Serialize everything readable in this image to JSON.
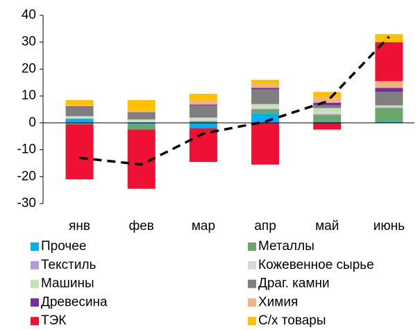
{
  "chart_data": {
    "type": "bar",
    "stacked": true,
    "categories": [
      "янв",
      "фев",
      "мар",
      "апр",
      "май",
      "июнь"
    ],
    "ylim": [
      -30,
      40
    ],
    "yticks": [
      -30,
      -20,
      -10,
      0,
      10,
      20,
      30,
      40
    ],
    "series": [
      {
        "name": "Прочее",
        "color": "#00b0f0",
        "values": [
          1.5,
          -0.5,
          -2,
          3.5,
          0.5,
          0.5
        ]
      },
      {
        "name": "Металлы",
        "color": "#6aa86a",
        "values": [
          -0.5,
          -2,
          0.5,
          1.5,
          2.5,
          5
        ]
      },
      {
        "name": "Текстиль",
        "color": "#b19cd9",
        "values": [
          0.2,
          0.3,
          0.3,
          0.3,
          0.3,
          0.3
        ]
      },
      {
        "name": "Кожевенное сырье",
        "color": "#d9d9d9",
        "values": [
          0.3,
          0.5,
          0.5,
          0.5,
          0.7,
          0.2
        ]
      },
      {
        "name": "Машины",
        "color": "#c5e0b4",
        "values": [
          0.5,
          0.5,
          0.7,
          1.2,
          1.5,
          0.5
        ]
      },
      {
        "name": "Драг. камни",
        "color": "#7f7f7f",
        "values": [
          3.5,
          2.7,
          4.5,
          5.5,
          1,
          5
        ]
      },
      {
        "name": "Древесина",
        "color": "#7030a0",
        "values": [
          0.2,
          0,
          0.3,
          0.5,
          1,
          1.5
        ]
      },
      {
        "name": "Химия",
        "color": "#f4b183",
        "values": [
          0.3,
          0.5,
          1.5,
          1.5,
          2,
          2.5
        ]
      },
      {
        "name": "ТЭК",
        "color": "#ee1133",
        "values": [
          -20.5,
          -22,
          -12.5,
          -15.5,
          -2.5,
          14.5
        ]
      },
      {
        "name": "С/х товары",
        "color": "#ffc000",
        "values": [
          2,
          4,
          2.5,
          1.5,
          2,
          3
        ]
      }
    ],
    "line": {
      "type": "line",
      "color": "#000000",
      "dashed": true,
      "values": [
        -13,
        -15.5,
        -4,
        0.5,
        8,
        32
      ]
    },
    "legend": "bottom"
  }
}
